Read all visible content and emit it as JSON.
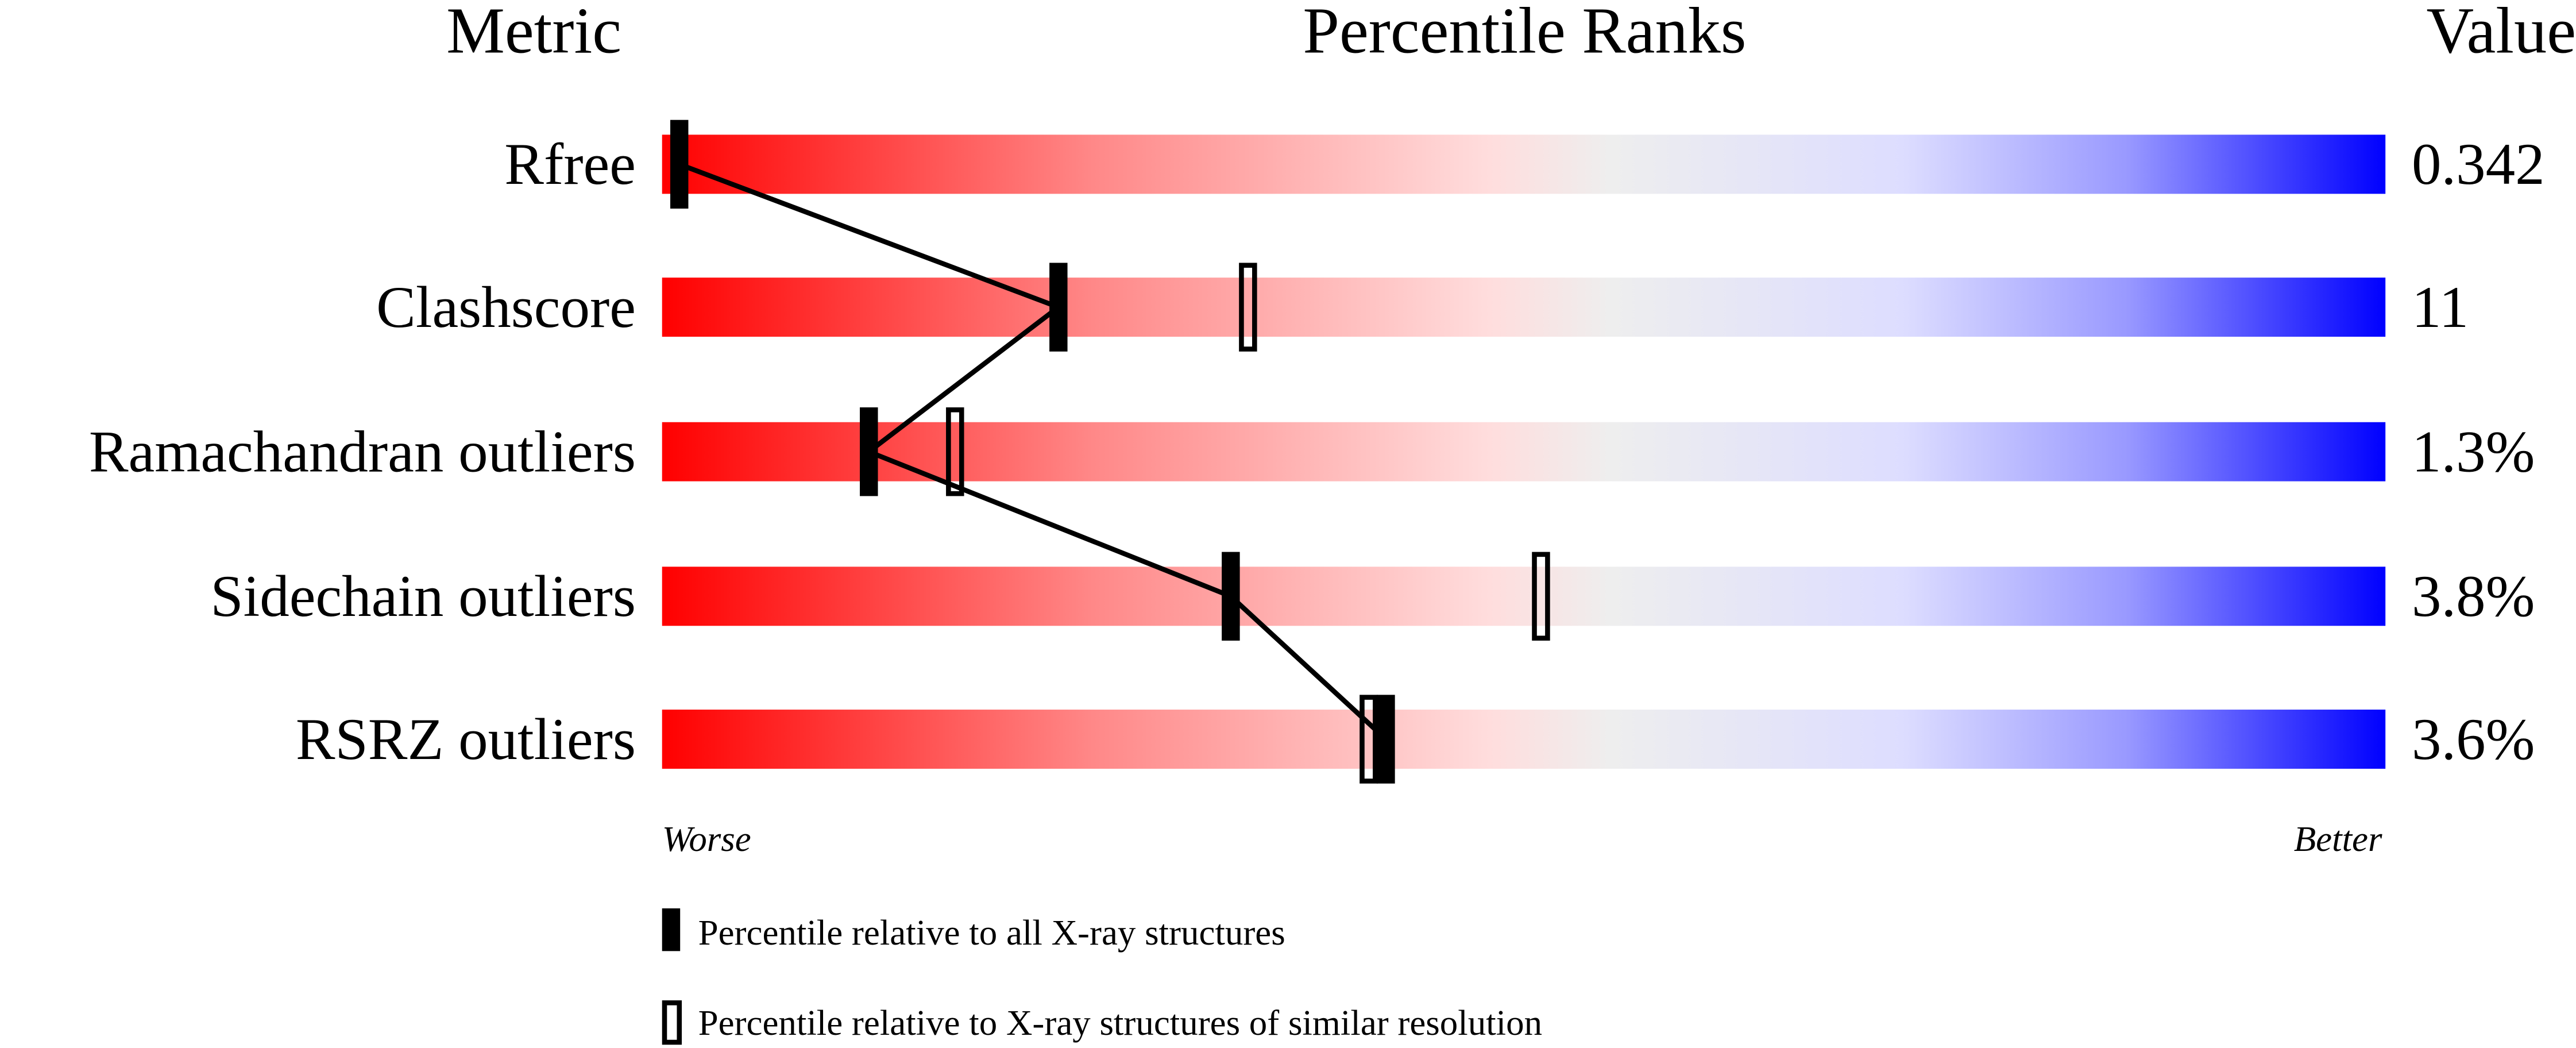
{
  "chart_data": {
    "type": "percentile-bar",
    "headers": {
      "metric": "Metric",
      "ranks": "Percentile Ranks",
      "value": "Value"
    },
    "xlim": [
      0,
      100
    ],
    "axis_labels": {
      "left": "Worse",
      "right": "Better"
    },
    "colors": {
      "worse": "#ff0000",
      "middle": "#eeeeee",
      "better": "#0000ff",
      "marker": "#000000"
    },
    "rows": [
      {
        "metric": "Rfree",
        "value": "0.342",
        "percentile_all": 1,
        "percentile_similar": null
      },
      {
        "metric": "Clashscore",
        "value": "11",
        "percentile_all": 23,
        "percentile_similar": 34
      },
      {
        "metric": "Ramachandran outliers",
        "value": "1.3%",
        "percentile_all": 12,
        "percentile_similar": 17
      },
      {
        "metric": "Sidechain outliers",
        "value": "3.8%",
        "percentile_all": 33,
        "percentile_similar": 51
      },
      {
        "metric": "RSRZ outliers",
        "value": "3.6%",
        "percentile_all": 42,
        "percentile_similar": 41
      }
    ],
    "legend": {
      "all": "Percentile relative to all X-ray structures",
      "similar": "Percentile relative to X-ray structures of similar resolution"
    }
  }
}
